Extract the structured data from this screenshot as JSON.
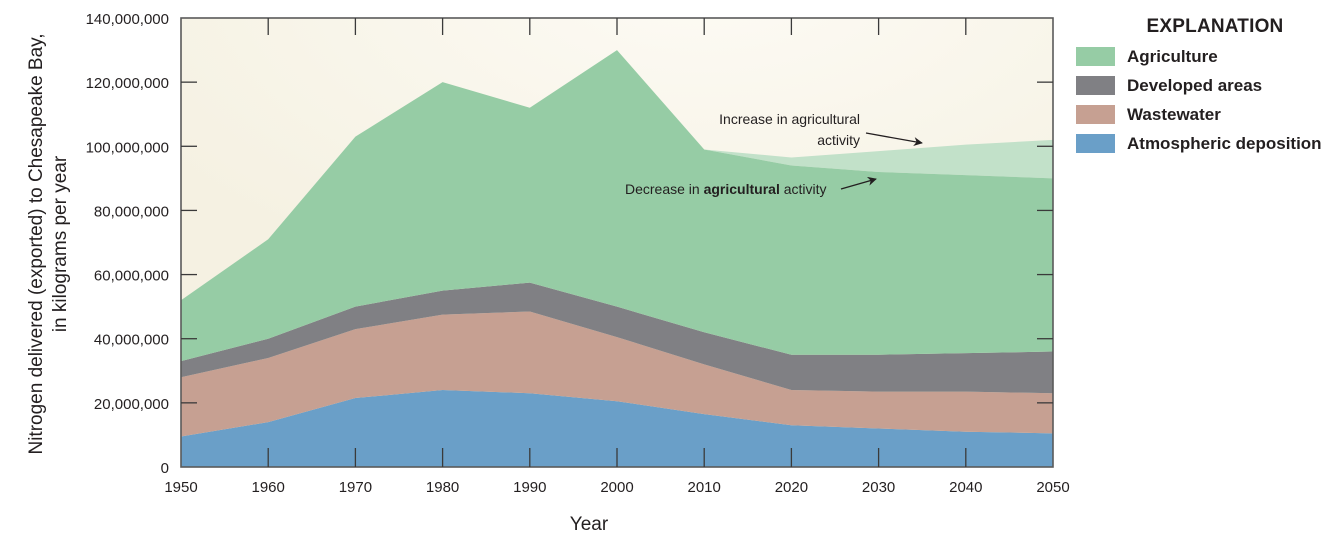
{
  "chart_data": {
    "type": "area",
    "stacked": true,
    "title": "",
    "xlabel": "Year",
    "ylabel_lines": [
      "Nitrogen delivered (exported) to Chesapeake Bay,",
      "in kilograms per year"
    ],
    "x": [
      1950,
      1960,
      1970,
      1980,
      1990,
      2000,
      2010,
      2020,
      2030,
      2040,
      2050
    ],
    "xlim": [
      1950,
      2050
    ],
    "ylim": [
      0,
      140000000
    ],
    "x_ticks": [
      "1950",
      "1960",
      "1970",
      "1980",
      "1990",
      "2000",
      "2010",
      "2020",
      "2030",
      "2040",
      "2050"
    ],
    "y_ticks": [
      0,
      20000000,
      40000000,
      60000000,
      80000000,
      100000000,
      120000000,
      140000000
    ],
    "y_tick_labels": [
      "0",
      "20,000,000",
      "40,000,000",
      "60,000,000",
      "80,000,000",
      "100,000,000",
      "120,000,000",
      "140,000,000"
    ],
    "series": [
      {
        "name": "Atmospheric deposition",
        "color": "#6a9fc8",
        "values": [
          9500000,
          14000000,
          21500000,
          24000000,
          23000000,
          20500000,
          16500000,
          13000000,
          12000000,
          11000000,
          10500000
        ]
      },
      {
        "name": "Wastewater",
        "color": "#c6a092",
        "values": [
          18500000,
          20000000,
          21500000,
          23500000,
          25500000,
          20000000,
          15500000,
          11000000,
          11500000,
          12500000,
          12500000
        ]
      },
      {
        "name": "Developed areas",
        "color": "#808084",
        "values": [
          5000000,
          6000000,
          7000000,
          7500000,
          9000000,
          9500000,
          10000000,
          11000000,
          11500000,
          12000000,
          13000000
        ]
      },
      {
        "name": "Agriculture",
        "color": "#96cca5",
        "values": [
          19000000,
          31000000,
          53000000,
          65000000,
          54500000,
          80000000,
          57000000,
          59000000,
          57000000,
          55500000,
          54000000
        ]
      }
    ],
    "scenario_band": {
      "name": "Increase in agricultural activity",
      "color": "#c2e1c9",
      "x": [
        2010,
        2020,
        2030,
        2040,
        2050
      ],
      "upper_total": [
        99000000,
        96500000,
        98500000,
        100500000,
        102000000
      ],
      "lower_total": [
        99000000,
        94000000,
        92000000,
        91000000,
        90000000
      ]
    },
    "annotations": [
      {
        "lines": [
          "Increase in agricultural",
          "activity"
        ],
        "points_to": "Increase scenario band"
      },
      {
        "parts": [
          "Decrease in ",
          "agricultural",
          " activity"
        ],
        "points_to": "Decrease scenario (agriculture top)"
      }
    ],
    "legend": {
      "title": "EXPLANATION",
      "placement": "right",
      "items": [
        {
          "label": "Agriculture",
          "color": "#96cca5"
        },
        {
          "label": "Developed areas",
          "color": "#808084"
        },
        {
          "label": "Wastewater",
          "color": "#c6a092"
        },
        {
          "label": "Atmospheric deposition",
          "color": "#6a9fc8"
        }
      ]
    },
    "background_color": "#f6f2e4",
    "grid": false
  }
}
